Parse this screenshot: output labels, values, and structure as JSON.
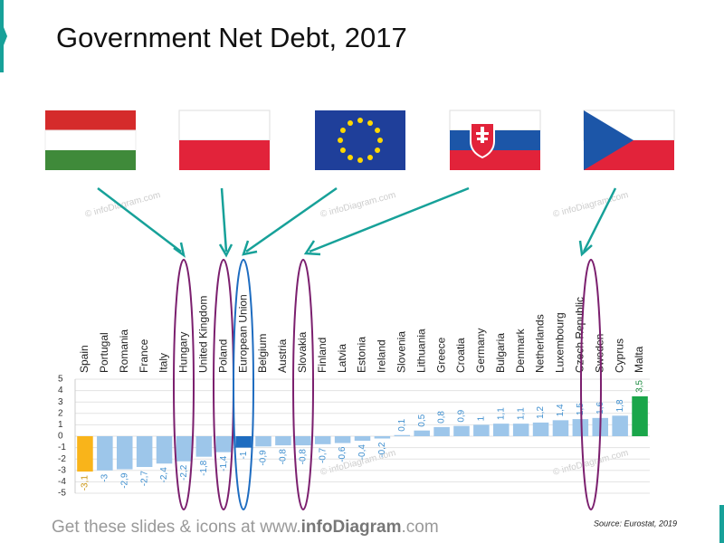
{
  "title": "Government Net Debt, 2017",
  "chart_data": {
    "type": "bar",
    "categories": [
      "Spain",
      "Portugal",
      "Romania",
      "France",
      "Italy",
      "Hungary",
      "United Kingdom",
      "Poland",
      "European Union",
      "Belgium",
      "Austria",
      "Slovakia",
      "Finland",
      "Latvia",
      "Estonia",
      "Ireland",
      "Slovenia",
      "Lithuania",
      "Greece",
      "Croatia",
      "Germany",
      "Bulgaria",
      "Denmark",
      "Netherlands",
      "Luxembourg",
      "Czech Republic",
      "Sweden",
      "Cyprus",
      "Malta"
    ],
    "values": [
      -3.1,
      -3,
      -2.9,
      -2.7,
      -2.4,
      -2.2,
      -1.8,
      -1.4,
      -1,
      -0.9,
      -0.8,
      -0.8,
      -0.7,
      -0.6,
      -0.4,
      -0.2,
      0.1,
      0.5,
      0.8,
      0.9,
      1,
      1.1,
      1.1,
      1.2,
      1.4,
      1.5,
      1.6,
      1.8,
      3.5
    ],
    "value_labels": [
      "-3,1",
      "-3",
      "-2,9",
      "-2,7",
      "-2,4",
      "-2,2",
      "-1,8",
      "-1,4",
      "-1",
      "-0,9",
      "-0,8",
      "-0,8",
      "-0,7",
      "-0,6",
      "-0,4",
      "-0,2",
      "0,1",
      "0,5",
      "0,8",
      "0,9",
      "1",
      "1,1",
      "1,1",
      "1,2",
      "1,4",
      "1,5",
      "1,6",
      "1,8",
      "3,5"
    ],
    "colors": [
      "#f9b41a",
      "#9dc6ea",
      "#9dc6ea",
      "#9dc6ea",
      "#9dc6ea",
      "#9dc6ea",
      "#9dc6ea",
      "#9dc6ea",
      "#1e6cc0",
      "#9dc6ea",
      "#9dc6ea",
      "#9dc6ea",
      "#9dc6ea",
      "#9dc6ea",
      "#9dc6ea",
      "#9dc6ea",
      "#9dc6ea",
      "#9dc6ea",
      "#9dc6ea",
      "#9dc6ea",
      "#9dc6ea",
      "#9dc6ea",
      "#9dc6ea",
      "#9dc6ea",
      "#9dc6ea",
      "#9dc6ea",
      "#9dc6ea",
      "#9dc6ea",
      "#1aa64a"
    ],
    "ylim": [
      -5,
      5
    ],
    "yticks": [
      -5,
      -4,
      -3,
      -2,
      -1,
      0,
      1,
      2,
      3,
      4,
      5
    ],
    "grid": true
  },
  "watermark": "© infoDiagram.com",
  "footer": {
    "prefix": "Get these slides & icons at www.",
    "brand": "infoDiagram",
    "suffix": ".com"
  },
  "source": "Source: Eurostat, 2019"
}
